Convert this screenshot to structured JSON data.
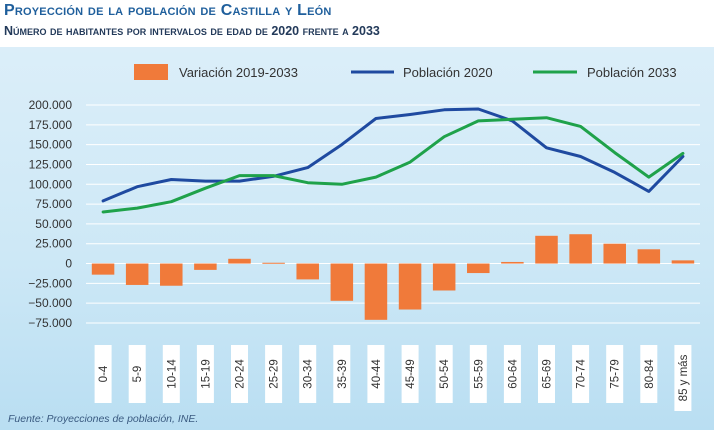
{
  "title": "Proyección de la población de Castilla y León",
  "subtitle": "Número de habitantes por intervalos de edad de 2020 frente a 2033",
  "source": "Fuente: Proyecciones de población, INE.",
  "colors": {
    "variacion": "#f07a3a",
    "p2020": "#1f4aa0",
    "p2033": "#1fa24a",
    "grid": "#ffffff",
    "xbox": "#ffffff"
  },
  "chart_data": {
    "type": "bar+line",
    "categories": [
      "0-4",
      "5-9",
      "10-14",
      "15-19",
      "20-24",
      "25-29",
      "30-34",
      "35-39",
      "40-44",
      "45-49",
      "50-54",
      "55-59",
      "60-64",
      "65-69",
      "70-74",
      "75-79",
      "80-84",
      "85 y más"
    ],
    "series": [
      {
        "name": "Variación 2019-2033",
        "type": "bar",
        "values": [
          -14000,
          -27000,
          -28000,
          -8000,
          6000,
          1000,
          -20000,
          -47000,
          -71000,
          -58000,
          -34000,
          -12000,
          2000,
          35000,
          37000,
          25000,
          18000,
          4000
        ]
      },
      {
        "name": "Población 2020",
        "type": "line",
        "values": [
          79000,
          97000,
          106000,
          104000,
          104000,
          110000,
          121000,
          150000,
          183000,
          188000,
          194000,
          195000,
          180000,
          146000,
          135000,
          115000,
          91000,
          135000
        ]
      },
      {
        "name": "Población 2033",
        "type": "line",
        "values": [
          65000,
          70000,
          78000,
          95000,
          111000,
          111000,
          102000,
          100000,
          109000,
          128000,
          160000,
          180000,
          182000,
          184000,
          173000,
          140000,
          109000,
          139000
        ]
      }
    ],
    "yticks": [
      "200.000",
      "175.000",
      "150.000",
      "125.000",
      "100.000",
      "75.000",
      "50.000",
      "25.000",
      "0",
      "−25.000",
      "−50.000",
      "−75.000"
    ],
    "ylim": [
      -75000,
      200000
    ],
    "grid": true,
    "legend_position": "top"
  }
}
